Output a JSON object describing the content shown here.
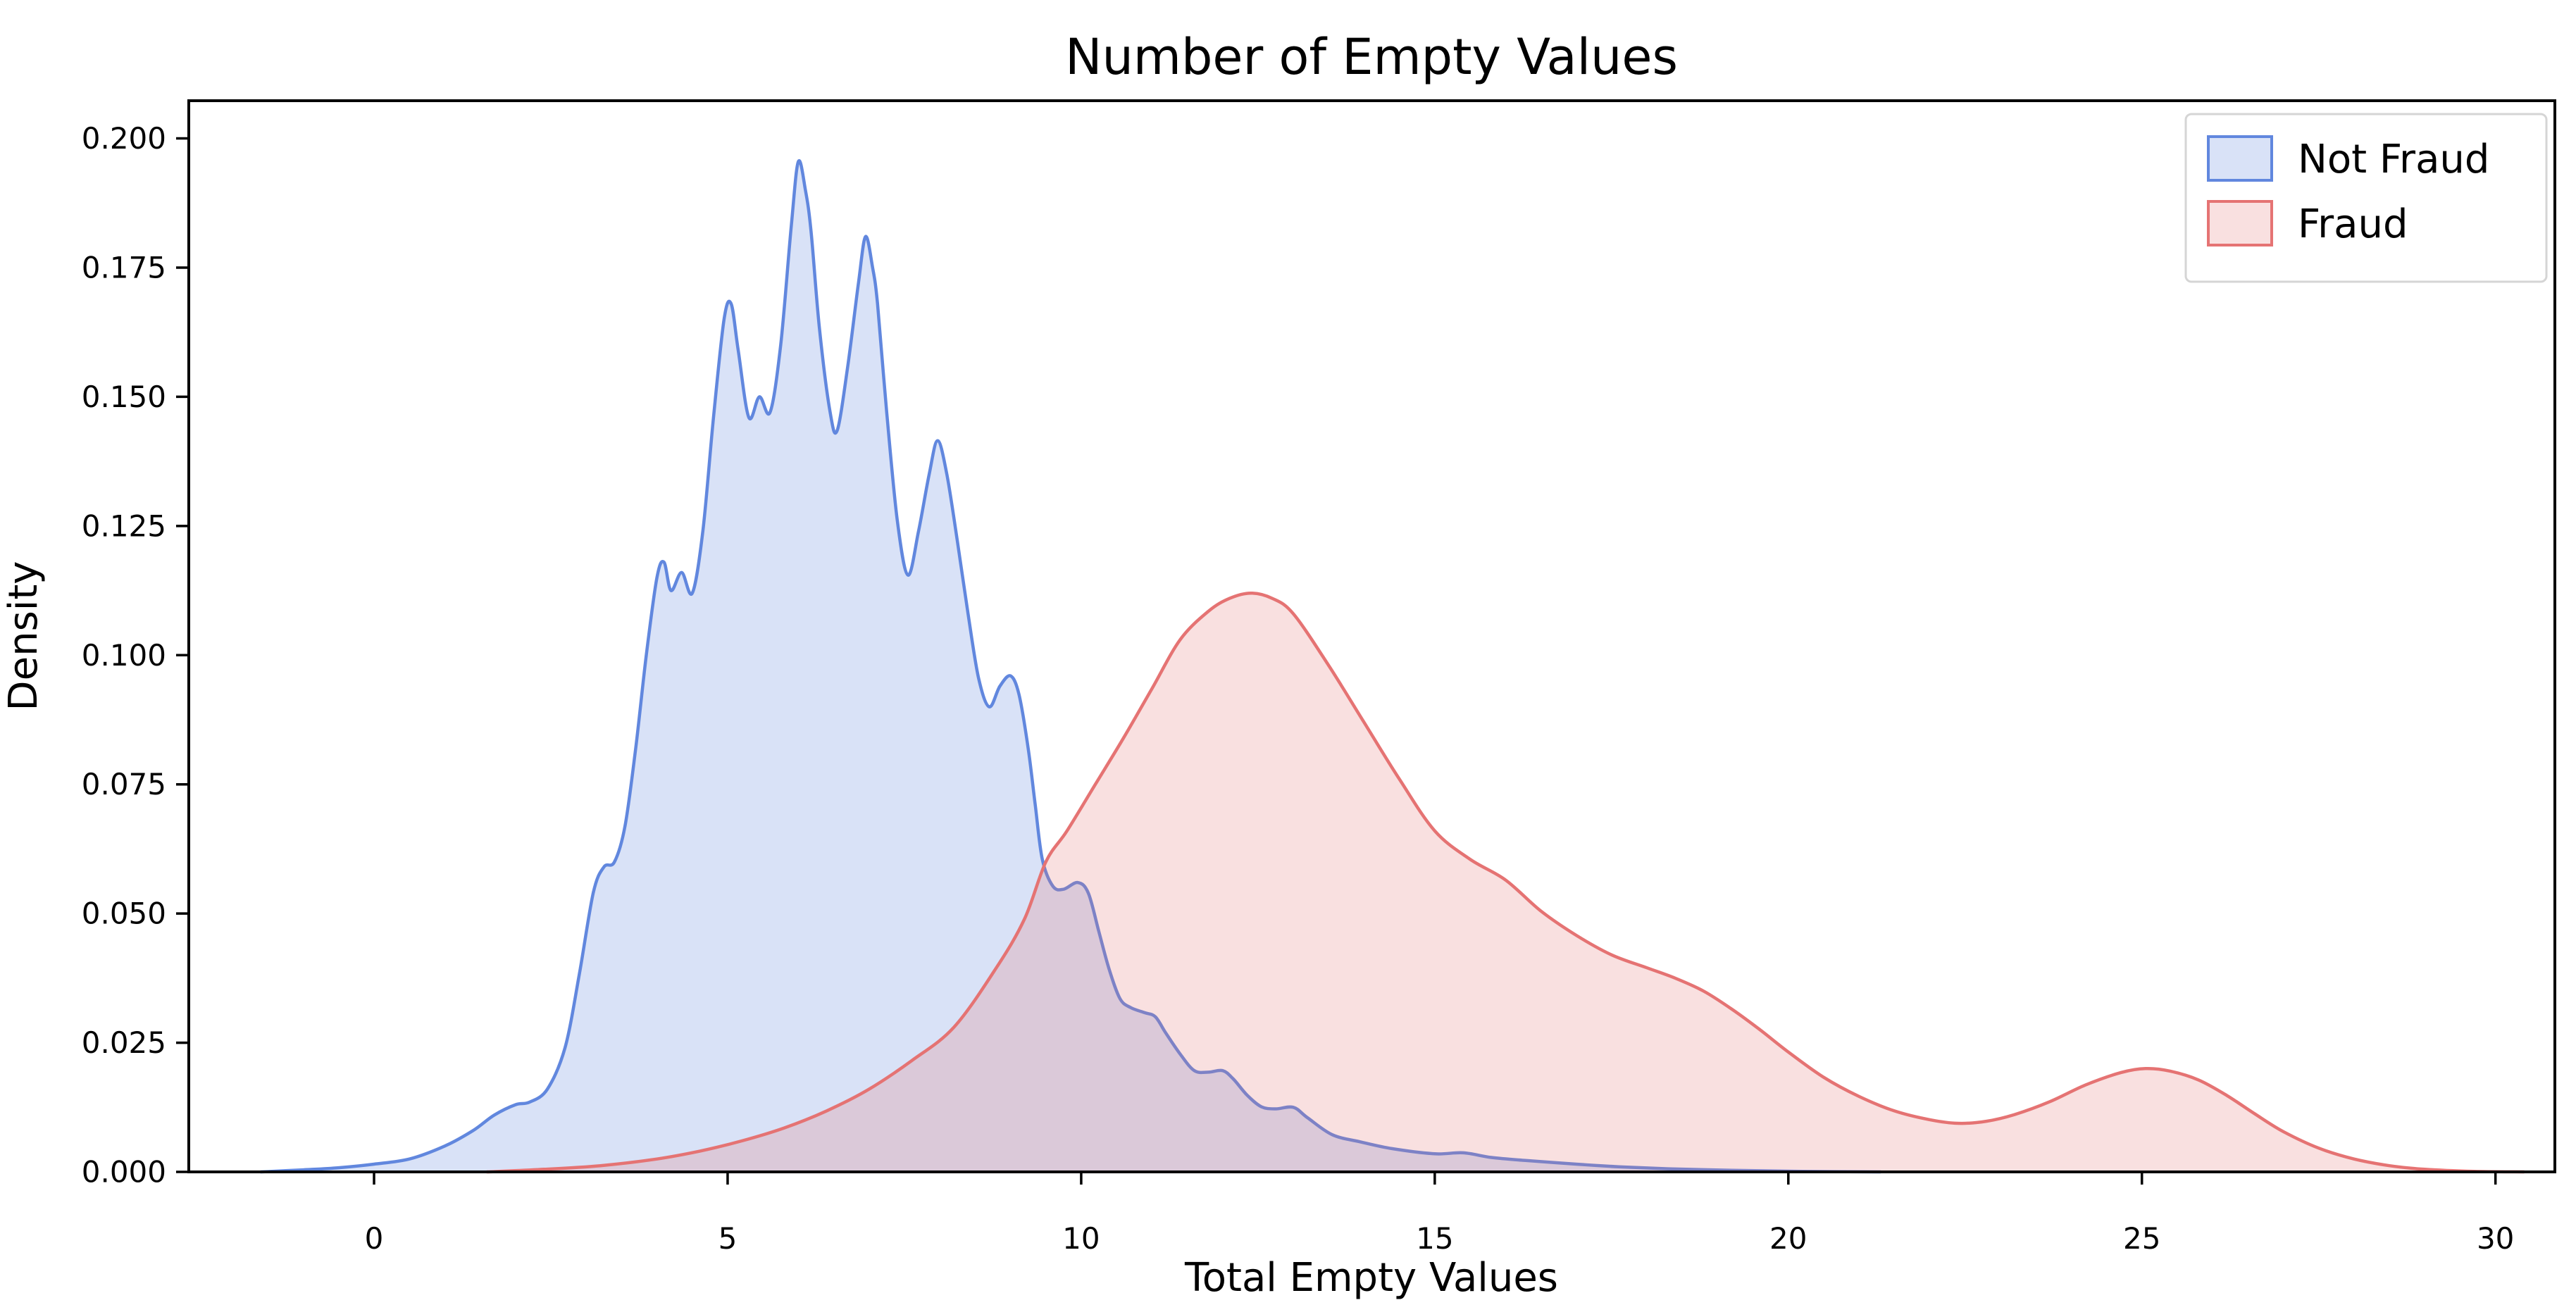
{
  "figure": {
    "background": "#ffffff",
    "axis_color": "#000000",
    "legend_border_color": "#d5d5d5"
  },
  "chart_data": {
    "type": "area",
    "kind": "kde-density-plot",
    "title": "Number of Empty Values",
    "xlabel": "Total Empty Values",
    "ylabel": "Density",
    "xlim": [
      -2.62,
      30.84
    ],
    "ylim": [
      0,
      0.2073
    ],
    "x_ticks": [
      0,
      5,
      10,
      15,
      20,
      25,
      30
    ],
    "y_ticks": [
      "0.000",
      "0.025",
      "0.050",
      "0.075",
      "0.100",
      "0.125",
      "0.150",
      "0.175",
      "0.200"
    ],
    "grid": false,
    "legend": {
      "position": "upper right",
      "entries": [
        {
          "label": "Not Fraud",
          "line_color": "#6187de",
          "fill_color": "#6187de",
          "fill_opacity": 0.24
        },
        {
          "label": "Fraud",
          "line_color": "#e57373",
          "fill_color": "#e57373",
          "fill_opacity": 0.22
        }
      ]
    },
    "series": [
      {
        "name": "Not Fraud",
        "line_color": "#6187de",
        "fill_color": "#6187de",
        "fill_opacity": 0.24,
        "points": [
          [
            -1.6,
            0.0
          ],
          [
            -1.0,
            0.0004
          ],
          [
            -0.5,
            0.0008
          ],
          [
            0.0,
            0.0015
          ],
          [
            0.5,
            0.0025
          ],
          [
            1.0,
            0.005
          ],
          [
            1.4,
            0.008
          ],
          [
            1.7,
            0.011
          ],
          [
            2.0,
            0.013
          ],
          [
            2.2,
            0.0135
          ],
          [
            2.45,
            0.016
          ],
          [
            2.7,
            0.024
          ],
          [
            2.9,
            0.038
          ],
          [
            3.1,
            0.054
          ],
          [
            3.25,
            0.059
          ],
          [
            3.4,
            0.06
          ],
          [
            3.55,
            0.067
          ],
          [
            3.7,
            0.082
          ],
          [
            3.85,
            0.1
          ],
          [
            4.0,
            0.115
          ],
          [
            4.1,
            0.118
          ],
          [
            4.2,
            0.1125
          ],
          [
            4.35,
            0.116
          ],
          [
            4.5,
            0.112
          ],
          [
            4.65,
            0.124
          ],
          [
            4.8,
            0.146
          ],
          [
            4.95,
            0.165
          ],
          [
            5.05,
            0.168
          ],
          [
            5.15,
            0.159
          ],
          [
            5.3,
            0.146
          ],
          [
            5.45,
            0.15
          ],
          [
            5.6,
            0.147
          ],
          [
            5.75,
            0.16
          ],
          [
            5.9,
            0.183
          ],
          [
            6.0,
            0.1955
          ],
          [
            6.1,
            0.19
          ],
          [
            6.18,
            0.182
          ],
          [
            6.3,
            0.163
          ],
          [
            6.45,
            0.147
          ],
          [
            6.55,
            0.1435
          ],
          [
            6.7,
            0.156
          ],
          [
            6.85,
            0.172
          ],
          [
            6.95,
            0.181
          ],
          [
            7.05,
            0.175
          ],
          [
            7.12,
            0.168
          ],
          [
            7.25,
            0.147
          ],
          [
            7.4,
            0.126
          ],
          [
            7.55,
            0.1155
          ],
          [
            7.7,
            0.124
          ],
          [
            7.85,
            0.135
          ],
          [
            7.97,
            0.1415
          ],
          [
            8.1,
            0.135
          ],
          [
            8.25,
            0.122
          ],
          [
            8.4,
            0.108
          ],
          [
            8.55,
            0.0955
          ],
          [
            8.7,
            0.09
          ],
          [
            8.85,
            0.094
          ],
          [
            9.0,
            0.096
          ],
          [
            9.12,
            0.0924
          ],
          [
            9.25,
            0.082
          ],
          [
            9.35,
            0.071
          ],
          [
            9.45,
            0.0605
          ],
          [
            9.6,
            0.0553
          ],
          [
            9.75,
            0.0547
          ],
          [
            9.95,
            0.056
          ],
          [
            10.1,
            0.054
          ],
          [
            10.25,
            0.0465
          ],
          [
            10.4,
            0.039
          ],
          [
            10.55,
            0.0335
          ],
          [
            10.7,
            0.0318
          ],
          [
            10.9,
            0.0308
          ],
          [
            11.05,
            0.03
          ],
          [
            11.2,
            0.0268
          ],
          [
            11.4,
            0.0228
          ],
          [
            11.6,
            0.0196
          ],
          [
            11.8,
            0.0193
          ],
          [
            12.0,
            0.0196
          ],
          [
            12.15,
            0.018
          ],
          [
            12.35,
            0.0148
          ],
          [
            12.55,
            0.0126
          ],
          [
            12.75,
            0.0122
          ],
          [
            13.0,
            0.0125
          ],
          [
            13.2,
            0.0105
          ],
          [
            13.55,
            0.0072
          ],
          [
            13.95,
            0.0058
          ],
          [
            14.4,
            0.0045
          ],
          [
            15.0,
            0.0035
          ],
          [
            15.4,
            0.0037
          ],
          [
            15.8,
            0.0028
          ],
          [
            16.3,
            0.0022
          ],
          [
            17.0,
            0.0015
          ],
          [
            17.6,
            0.001
          ],
          [
            18.3,
            0.0006
          ],
          [
            19.2,
            0.0003
          ],
          [
            20.2,
            0.0001
          ],
          [
            21.3,
            0.0
          ]
        ]
      },
      {
        "name": "Fraud",
        "line_color": "#e57373",
        "fill_color": "#e57373",
        "fill_opacity": 0.22,
        "points": [
          [
            1.6,
            0.0
          ],
          [
            2.4,
            0.0005
          ],
          [
            3.2,
            0.0012
          ],
          [
            4.0,
            0.0025
          ],
          [
            4.6,
            0.004
          ],
          [
            5.2,
            0.006
          ],
          [
            5.8,
            0.0085
          ],
          [
            6.4,
            0.0118
          ],
          [
            7.0,
            0.016
          ],
          [
            7.6,
            0.0215
          ],
          [
            8.2,
            0.028
          ],
          [
            8.8,
            0.0395
          ],
          [
            9.2,
            0.049
          ],
          [
            9.5,
            0.06
          ],
          [
            9.8,
            0.066
          ],
          [
            10.2,
            0.075
          ],
          [
            10.6,
            0.084
          ],
          [
            11.0,
            0.0935
          ],
          [
            11.4,
            0.103
          ],
          [
            11.8,
            0.1085
          ],
          [
            12.1,
            0.111
          ],
          [
            12.4,
            0.112
          ],
          [
            12.7,
            0.111
          ],
          [
            13.0,
            0.108
          ],
          [
            13.5,
            0.098
          ],
          [
            14.0,
            0.087
          ],
          [
            14.5,
            0.076
          ],
          [
            15.0,
            0.066
          ],
          [
            15.5,
            0.0605
          ],
          [
            16.0,
            0.0565
          ],
          [
            16.5,
            0.0505
          ],
          [
            17.0,
            0.0458
          ],
          [
            17.5,
            0.042
          ],
          [
            18.0,
            0.0395
          ],
          [
            18.4,
            0.0375
          ],
          [
            18.8,
            0.035
          ],
          [
            19.2,
            0.0315
          ],
          [
            19.6,
            0.0275
          ],
          [
            20.0,
            0.0232
          ],
          [
            20.5,
            0.0183
          ],
          [
            21.0,
            0.0146
          ],
          [
            21.5,
            0.0118
          ],
          [
            22.0,
            0.0101
          ],
          [
            22.4,
            0.0094
          ],
          [
            22.8,
            0.0098
          ],
          [
            23.2,
            0.0111
          ],
          [
            23.7,
            0.0136
          ],
          [
            24.2,
            0.0168
          ],
          [
            24.7,
            0.0192
          ],
          [
            25.05,
            0.02
          ],
          [
            25.4,
            0.0195
          ],
          [
            25.8,
            0.0178
          ],
          [
            26.2,
            0.0148
          ],
          [
            26.6,
            0.0112
          ],
          [
            27.0,
            0.0078
          ],
          [
            27.5,
            0.0046
          ],
          [
            28.0,
            0.0025
          ],
          [
            28.5,
            0.0012
          ],
          [
            29.0,
            0.0005
          ],
          [
            29.7,
            0.0001
          ],
          [
            30.4,
            0.0
          ]
        ]
      }
    ]
  }
}
